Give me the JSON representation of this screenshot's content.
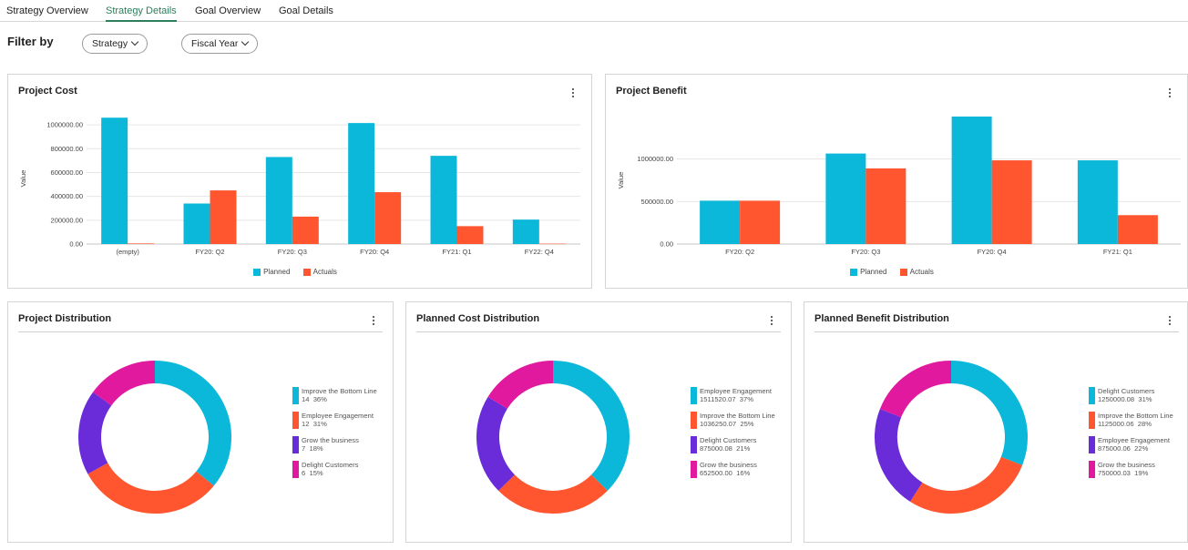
{
  "tabs": [
    {
      "label": "Strategy Overview",
      "active": false
    },
    {
      "label": "Strategy Details",
      "active": true
    },
    {
      "label": "Goal Overview",
      "active": false
    },
    {
      "label": "Goal Details",
      "active": false
    }
  ],
  "filter": {
    "title": "Filter by",
    "strategy_label": "Strategy",
    "fiscal_year_label": "Fiscal Year"
  },
  "colors": {
    "planned": "#0cb8d9",
    "actuals": "#ff5630",
    "purple": "#6a2bd9",
    "magenta": "#e0199e",
    "active_tab": "#2e7d5b"
  },
  "cards": {
    "project_cost": {
      "title": "Project Cost",
      "menu_icon": "kebab-menu-icon"
    },
    "project_benefit": {
      "title": "Project Benefit",
      "menu_icon": "kebab-menu-icon"
    },
    "project_distribution": {
      "title": "Project Distribution",
      "menu_icon": "kebab-menu-icon"
    },
    "planned_cost_distribution": {
      "title": "Planned Cost Distribution",
      "menu_icon": "kebab-menu-icon"
    },
    "planned_benefit_distribution": {
      "title": "Planned Benefit Distribution",
      "menu_icon": "kebab-menu-icon"
    }
  },
  "chart_data": [
    {
      "id": "project_cost",
      "type": "bar",
      "title": "Project Cost",
      "ylabel": "Value",
      "categories": [
        "(empty)",
        "FY20: Q2",
        "FY20: Q3",
        "FY20: Q4",
        "FY21: Q1",
        "FY22: Q4"
      ],
      "series": [
        {
          "name": "Planned",
          "color": "#0cb8d9",
          "values": [
            1060000,
            340000,
            730000,
            1015000,
            740000,
            205000
          ]
        },
        {
          "name": "Actuals",
          "color": "#ff5630",
          "values": [
            5000,
            450000,
            230000,
            435000,
            150000,
            3000
          ]
        }
      ],
      "yticks": [
        "0.00",
        "200000.00",
        "400000.00",
        "600000.00",
        "800000.00",
        "1000000.00"
      ],
      "ylim": [
        0,
        1100000
      ],
      "grid": true,
      "legend": "bottom"
    },
    {
      "id": "project_benefit",
      "type": "bar",
      "title": "Project Benefit",
      "ylabel": "Value",
      "categories": [
        "FY20: Q2",
        "FY20: Q3",
        "FY20: Q4",
        "FY21: Q1"
      ],
      "series": [
        {
          "name": "Planned",
          "color": "#0cb8d9",
          "values": [
            510000,
            1065000,
            1500000,
            985000
          ]
        },
        {
          "name": "Actuals",
          "color": "#ff5630",
          "values": [
            510000,
            890000,
            985000,
            340000
          ]
        }
      ],
      "yticks": [
        "0.00",
        "500000.00",
        "1000000.00"
      ],
      "ylim": [
        0,
        1500000
      ],
      "grid": true,
      "legend": "bottom"
    },
    {
      "id": "project_distribution",
      "type": "pie",
      "title": "Project Distribution",
      "slices": [
        {
          "name": "Improve the Bottom Line",
          "value": "14",
          "pct": 36,
          "pct_label": "36%",
          "color": "#0cb8d9"
        },
        {
          "name": "Employee Engagement",
          "value": "12",
          "pct": 31,
          "pct_label": "31%",
          "color": "#ff5630"
        },
        {
          "name": "Grow the business",
          "value": "7",
          "pct": 18,
          "pct_label": "18%",
          "color": "#6a2bd9"
        },
        {
          "name": "Delight Customers",
          "value": "6",
          "pct": 15,
          "pct_label": "15%",
          "color": "#e0199e"
        }
      ],
      "legend": "right"
    },
    {
      "id": "planned_cost_distribution",
      "type": "pie",
      "title": "Planned Cost Distribution",
      "slices": [
        {
          "name": "Employee Engagement",
          "value": "1511520.07",
          "pct": 37,
          "pct_label": "37%",
          "color": "#0cb8d9"
        },
        {
          "name": "Improve the Bottom Line",
          "value": "1036250.07",
          "pct": 25,
          "pct_label": "25%",
          "color": "#ff5630"
        },
        {
          "name": "Delight Customers",
          "value": "875000.08",
          "pct": 21,
          "pct_label": "21%",
          "color": "#6a2bd9"
        },
        {
          "name": "Grow the business",
          "value": "652500.00",
          "pct": 16,
          "pct_label": "16%",
          "color": "#e0199e"
        }
      ],
      "legend": "right"
    },
    {
      "id": "planned_benefit_distribution",
      "type": "pie",
      "title": "Planned Benefit Distribution",
      "slices": [
        {
          "name": "Delight Customers",
          "value": "1250000.08",
          "pct": 31,
          "pct_label": "31%",
          "color": "#0cb8d9"
        },
        {
          "name": "Improve the Bottom Line",
          "value": "1125000.06",
          "pct": 28,
          "pct_label": "28%",
          "color": "#ff5630"
        },
        {
          "name": "Employee Engagement",
          "value": "875000.06",
          "pct": 22,
          "pct_label": "22%",
          "color": "#6a2bd9"
        },
        {
          "name": "Grow the business",
          "value": "750000.03",
          "pct": 19,
          "pct_label": "19%",
          "color": "#e0199e"
        }
      ],
      "legend": "right"
    }
  ]
}
